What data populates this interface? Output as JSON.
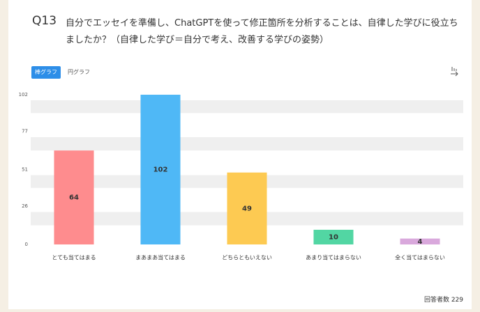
{
  "question_number": "Q13",
  "question": "自分でエッセイを準備し、ChatGPTを使って修正箇所を分析することは、自律した学びに役立ちましたか？（自律した学び＝自分で考え、改善する学びの姿勢）",
  "tabs": [
    "棒グラフ",
    "円グラフ"
  ],
  "footer": "回答者数 229",
  "chart_data": {
    "type": "bar",
    "categories": [
      "とても当てはまる",
      "まあまあ当てはまる",
      "どちらともいえない",
      "あまり当てはまらない",
      "全く当てはまらない"
    ],
    "values": [
      64,
      102,
      49,
      10,
      4
    ],
    "colors": [
      "#fe8c8e",
      "#4fb8f6",
      "#fdca52",
      "#52d6a3",
      "#d9a8dc"
    ],
    "ylim": [
      0,
      102
    ],
    "yticks": [
      0,
      26,
      51,
      77,
      102
    ],
    "grid": true
  }
}
